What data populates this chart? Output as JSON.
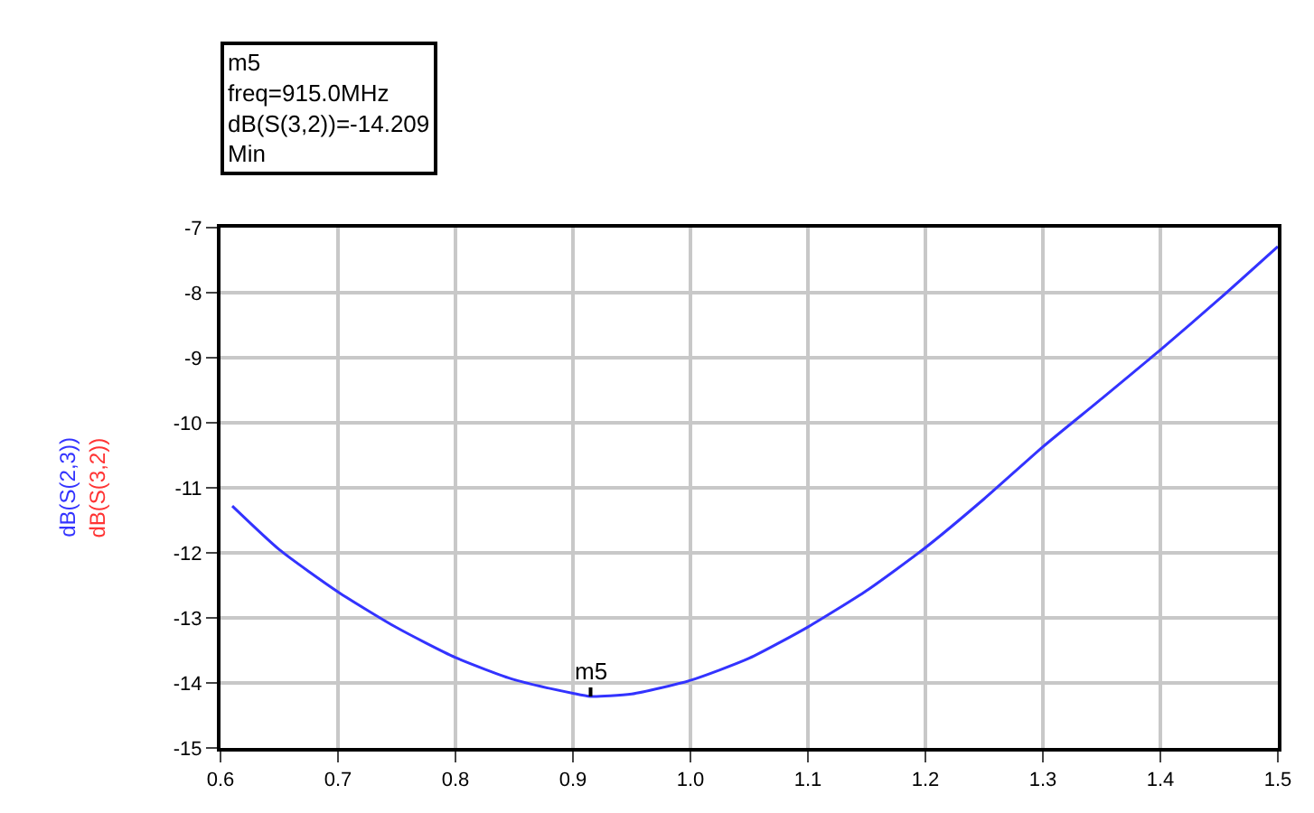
{
  "chart_data": {
    "type": "line",
    "ylabel": "dB(S(3,2))",
    "x": [
      0.61,
      0.65,
      0.7,
      0.75,
      0.8,
      0.85,
      0.9,
      0.915,
      0.95,
      1.0,
      1.05,
      1.1,
      1.15,
      1.2,
      1.25,
      1.3,
      1.35,
      1.4,
      1.45,
      1.5
    ],
    "series": [
      {
        "name": "dB(S(2,3))",
        "color": "#3333ff",
        "values": [
          -11.28,
          -11.95,
          -12.6,
          -13.15,
          -13.61,
          -13.95,
          -14.16,
          -14.209,
          -14.17,
          -13.96,
          -13.62,
          -13.14,
          -12.58,
          -11.92,
          -11.17,
          -10.37,
          -9.63,
          -8.88,
          -8.1,
          -7.29
        ]
      }
    ],
    "xlim": [
      0.6,
      1.5
    ],
    "xticks": [
      0.6,
      0.7,
      0.8,
      0.9,
      {
        "value": 1.0,
        "label": "1.0"
      },
      1.1,
      1.2,
      1.3,
      1.4,
      1.5
    ],
    "ylim": [
      -15,
      -7
    ],
    "yticks": [
      -15,
      -14,
      -13,
      -12,
      -11,
      -10,
      -9,
      -8,
      -7
    ],
    "grid": true,
    "legend": "left",
    "marker": "none",
    "line_style": "solid",
    "annotations": [
      "m5\nfreq=915.0MHz\ndB(S(3,2))=-14.209\nMin",
      {
        "text": "m5",
        "x": 0.915,
        "y": -14.209
      }
    ]
  }
}
